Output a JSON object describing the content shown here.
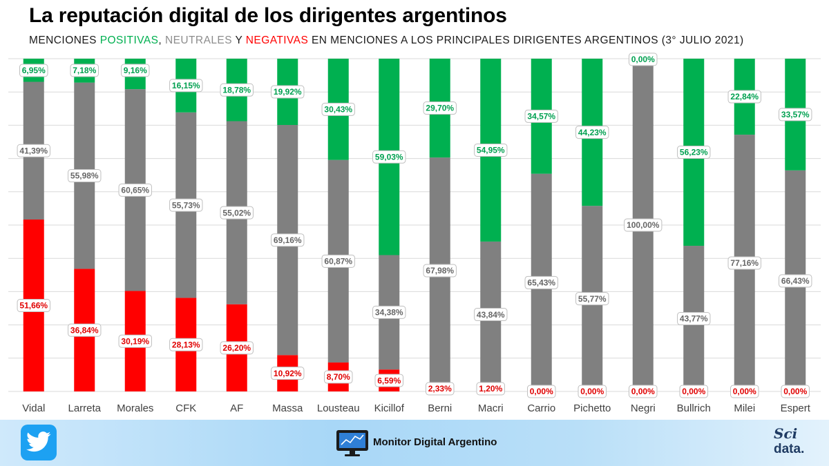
{
  "header": {
    "title": "La reputación digital de los dirigentes argentinos",
    "subtitle_prefix": "MENCIONES ",
    "subtitle_pos": "POSITIVAS",
    "subtitle_sep1": ", ",
    "subtitle_neu": "NEUTRALES",
    "subtitle_sep2": " Y ",
    "subtitle_neg": "NEGATIVAS",
    "subtitle_suffix": " EN MENCIONES A LOS PRINCIPALES DIRIGENTES ARGENTINOS (3° JULIO 2021)"
  },
  "colors": {
    "positive": "#00b050",
    "neutral": "#808080",
    "negative": "#ff0000",
    "twitter": "#1da1f2"
  },
  "chart_data": {
    "type": "bar",
    "stacked": true,
    "normalized": true,
    "ylim": [
      0,
      100
    ],
    "grid": true,
    "legend": "none",
    "categories": [
      "Vidal",
      "Larreta",
      "Morales",
      "CFK",
      "AF",
      "Massa",
      "Lousteau",
      "Kicillof",
      "Berni",
      "Macri",
      "Carrio",
      "Pichetto",
      "Negri",
      "Bullrich",
      "Milei",
      "Espert"
    ],
    "series": [
      {
        "key": "negative",
        "values": [
          51.66,
          36.84,
          30.19,
          28.13,
          26.2,
          10.92,
          8.7,
          6.59,
          2.33,
          1.2,
          0,
          0,
          0,
          0,
          0,
          0
        ],
        "labels": [
          "51,66%",
          "36,84%",
          "30,19%",
          "28,13%",
          "26,20%",
          "10,92%",
          "8,70%",
          "6,59%",
          "2,33%",
          "1,20%",
          "0,00%",
          "0,00%",
          "0,00%",
          "0,00%",
          "0,00%",
          "0,00%"
        ]
      },
      {
        "key": "neutral",
        "values": [
          41.39,
          55.98,
          60.65,
          55.73,
          55.02,
          69.16,
          60.87,
          34.38,
          67.98,
          43.84,
          65.43,
          55.77,
          100.0,
          43.77,
          77.16,
          66.43
        ],
        "labels": [
          "41,39%",
          "55,98%",
          "60,65%",
          "55,73%",
          "55,02%",
          "69,16%",
          "60,87%",
          "34,38%",
          "67,98%",
          "43,84%",
          "65,43%",
          "55,77%",
          "100,00%",
          "43,77%",
          "77,16%",
          "66,43%"
        ]
      },
      {
        "key": "positive",
        "values": [
          6.95,
          7.18,
          9.16,
          16.15,
          18.78,
          19.92,
          30.43,
          59.03,
          29.7,
          54.95,
          34.57,
          44.23,
          0,
          56.23,
          22.84,
          33.57
        ],
        "labels": [
          "6,95%",
          "7,18%",
          "9,16%",
          "16,15%",
          "18,78%",
          "19,92%",
          "30,43%",
          "59,03%",
          "29,70%",
          "54,95%",
          "34,57%",
          "44,23%",
          "0,00%",
          "56,23%",
          "22,84%",
          "33,57%"
        ]
      }
    ]
  },
  "footer": {
    "brand": "Monitor Digital Argentino",
    "sci_top": "Sci",
    "sci_bottom": "data."
  }
}
